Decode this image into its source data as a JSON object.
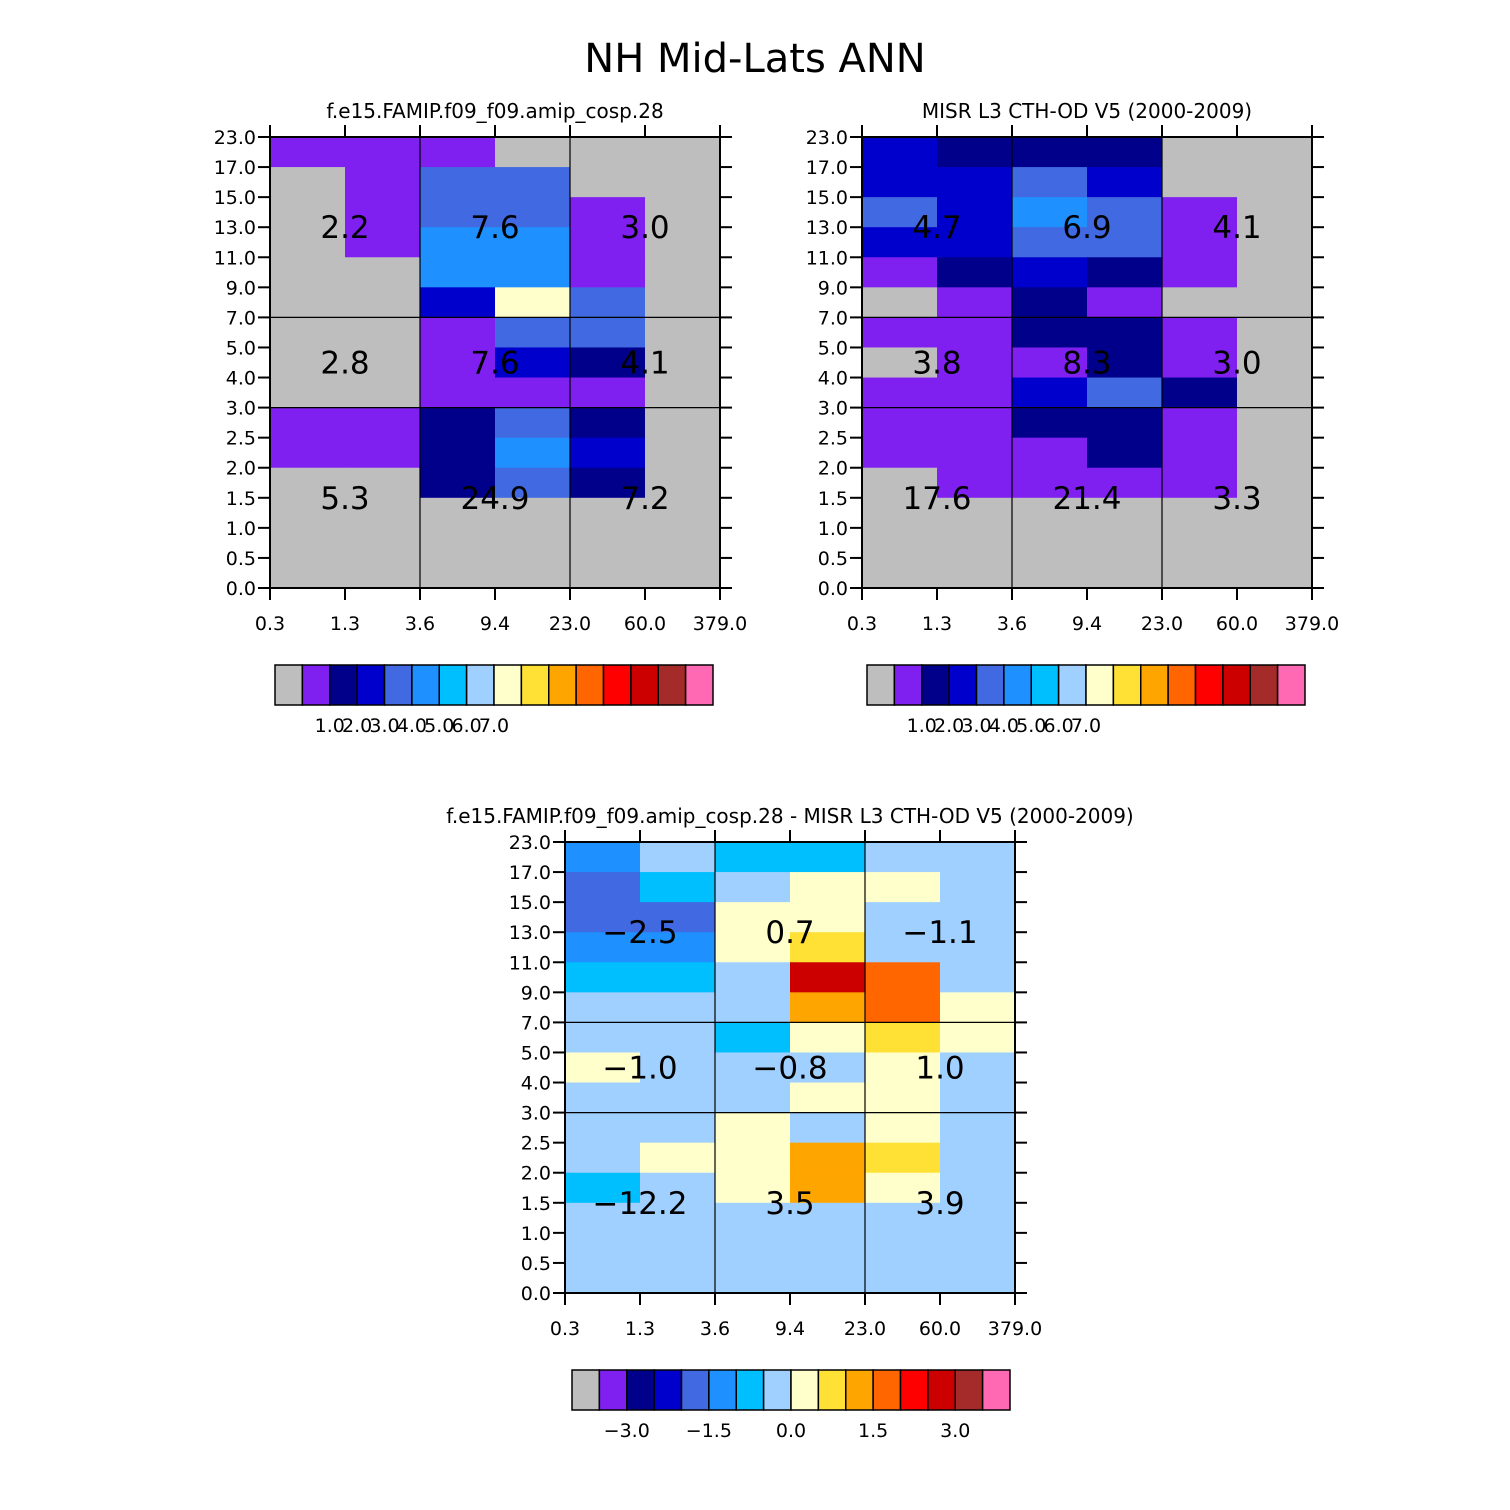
{
  "figure": {
    "title": "NH Mid-Lats ANN"
  },
  "palette": {
    "colors": [
      "#bebebe",
      "#8020f0",
      "#00008b",
      "#0000cd",
      "#4169e1",
      "#1e90ff",
      "#00bfff",
      "#a0d0ff",
      "#ffffcc",
      "#ffe135",
      "#ffa500",
      "#ff6600",
      "#ff0000",
      "#cd0000",
      "#a52a2a",
      "#ff69b4"
    ],
    "grid_line": "#000000"
  },
  "chart_data": [
    {
      "type": "heatmap",
      "title": "f.e15.FAMIP.f09_f09.amip_cosp.28",
      "x_ticks": [
        "0.3",
        "1.3",
        "3.6",
        "9.4",
        "23.0",
        "60.0",
        "379.0"
      ],
      "y_ticks": [
        "0.0",
        "0.5",
        "1.0",
        "1.5",
        "2.0",
        "2.5",
        "3.0",
        "4.0",
        "5.0",
        "7.0",
        "9.0",
        "11.0",
        "13.0",
        "15.0",
        "17.0",
        "23.0"
      ],
      "grid_x_bins": [
        2,
        4
      ],
      "grid_y_bins": [
        6,
        9
      ],
      "cell_colors": [
        [
          1,
          1,
          1,
          0,
          0,
          0
        ],
        [
          0,
          1,
          4,
          4,
          0,
          0
        ],
        [
          0,
          1,
          4,
          4,
          1,
          0
        ],
        [
          0,
          1,
          5,
          5,
          1,
          0
        ],
        [
          0,
          0,
          5,
          5,
          1,
          0
        ],
        [
          0,
          0,
          3,
          8,
          4,
          0
        ],
        [
          0,
          0,
          1,
          4,
          4,
          0
        ],
        [
          0,
          0,
          1,
          3,
          2,
          0
        ],
        [
          0,
          0,
          1,
          1,
          1,
          0
        ],
        [
          1,
          1,
          2,
          4,
          2,
          0
        ],
        [
          1,
          1,
          2,
          5,
          3,
          0
        ],
        [
          0,
          0,
          2,
          4,
          2,
          0
        ],
        [
          0,
          0,
          0,
          0,
          0,
          0
        ],
        [
          0,
          0,
          0,
          0,
          0,
          0
        ],
        [
          0,
          0,
          0,
          0,
          0,
          0
        ]
      ],
      "annotations": [
        {
          "x_bin": 1,
          "y_bin": 12,
          "label": "2.2"
        },
        {
          "x_bin": 3,
          "y_bin": 12,
          "label": "7.6"
        },
        {
          "x_bin": 5,
          "y_bin": 12,
          "label": "3.0"
        },
        {
          "x_bin": 1,
          "y_bin": 7.5,
          "label": "2.8"
        },
        {
          "x_bin": 3,
          "y_bin": 7.5,
          "label": "7.6"
        },
        {
          "x_bin": 5,
          "y_bin": 7.5,
          "label": "4.1"
        },
        {
          "x_bin": 1,
          "y_bin": 3,
          "label": "5.3"
        },
        {
          "x_bin": 3,
          "y_bin": 3,
          "label": "24.9"
        },
        {
          "x_bin": 5,
          "y_bin": 3,
          "label": "7.2"
        }
      ],
      "colorbar": {
        "labels": [
          "1.0",
          "2.0",
          "3.0",
          "4.0",
          "5.0",
          "6.0",
          "7.0"
        ],
        "first_boundary": 1
      }
    },
    {
      "type": "heatmap",
      "title": "MISR L3 CTH-OD V5 (2000-2009)",
      "x_ticks": [
        "0.3",
        "1.3",
        "3.6",
        "9.4",
        "23.0",
        "60.0",
        "379.0"
      ],
      "y_ticks": [
        "0.0",
        "0.5",
        "1.0",
        "1.5",
        "2.0",
        "2.5",
        "3.0",
        "4.0",
        "5.0",
        "7.0",
        "9.0",
        "11.0",
        "13.0",
        "15.0",
        "17.0",
        "23.0"
      ],
      "grid_x_bins": [
        2,
        4
      ],
      "grid_y_bins": [
        6,
        9
      ],
      "cell_colors": [
        [
          3,
          2,
          2,
          2,
          0,
          0
        ],
        [
          3,
          3,
          4,
          3,
          0,
          0
        ],
        [
          4,
          3,
          5,
          4,
          1,
          0
        ],
        [
          3,
          3,
          4,
          4,
          1,
          0
        ],
        [
          1,
          2,
          3,
          2,
          1,
          0
        ],
        [
          0,
          1,
          2,
          1,
          0,
          0
        ],
        [
          1,
          1,
          2,
          2,
          1,
          0
        ],
        [
          0,
          1,
          1,
          2,
          1,
          0
        ],
        [
          1,
          1,
          3,
          4,
          2,
          0
        ],
        [
          1,
          1,
          2,
          2,
          1,
          0
        ],
        [
          1,
          1,
          1,
          2,
          1,
          0
        ],
        [
          0,
          1,
          1,
          1,
          1,
          0
        ],
        [
          0,
          0,
          0,
          0,
          0,
          0
        ],
        [
          0,
          0,
          0,
          0,
          0,
          0
        ],
        [
          0,
          0,
          0,
          0,
          0,
          0
        ]
      ],
      "annotations": [
        {
          "x_bin": 1,
          "y_bin": 12,
          "label": "4.7"
        },
        {
          "x_bin": 3,
          "y_bin": 12,
          "label": "6.9"
        },
        {
          "x_bin": 5,
          "y_bin": 12,
          "label": "4.1"
        },
        {
          "x_bin": 1,
          "y_bin": 7.5,
          "label": "3.8"
        },
        {
          "x_bin": 3,
          "y_bin": 7.5,
          "label": "8.3"
        },
        {
          "x_bin": 5,
          "y_bin": 7.5,
          "label": "3.0"
        },
        {
          "x_bin": 1,
          "y_bin": 3,
          "label": "17.6"
        },
        {
          "x_bin": 3,
          "y_bin": 3,
          "label": "21.4"
        },
        {
          "x_bin": 5,
          "y_bin": 3,
          "label": "3.3"
        }
      ],
      "colorbar": {
        "labels": [
          "1.0",
          "2.0",
          "3.0",
          "4.0",
          "5.0",
          "6.0",
          "7.0"
        ],
        "first_boundary": 1
      }
    },
    {
      "type": "heatmap",
      "title": "f.e15.FAMIP.f09_f09.amip_cosp.28 - MISR L3 CTH-OD V5 (2000-2009)",
      "x_ticks": [
        "0.3",
        "1.3",
        "3.6",
        "9.4",
        "23.0",
        "60.0",
        "379.0"
      ],
      "y_ticks": [
        "0.0",
        "0.5",
        "1.0",
        "1.5",
        "2.0",
        "2.5",
        "3.0",
        "4.0",
        "5.0",
        "7.0",
        "9.0",
        "11.0",
        "13.0",
        "15.0",
        "17.0",
        "23.0"
      ],
      "grid_x_bins": [
        2,
        4
      ],
      "grid_y_bins": [
        6,
        9
      ],
      "cell_colors": [
        [
          5,
          7,
          6,
          6,
          7,
          7
        ],
        [
          4,
          6,
          7,
          8,
          8,
          7
        ],
        [
          4,
          4,
          8,
          8,
          7,
          7
        ],
        [
          5,
          5,
          8,
          9,
          7,
          7
        ],
        [
          6,
          6,
          7,
          13,
          11,
          7
        ],
        [
          7,
          7,
          7,
          10,
          11,
          8
        ],
        [
          7,
          7,
          6,
          8,
          9,
          8
        ],
        [
          8,
          7,
          7,
          7,
          8,
          7
        ],
        [
          7,
          7,
          7,
          8,
          8,
          7
        ],
        [
          7,
          7,
          8,
          7,
          8,
          7
        ],
        [
          7,
          8,
          8,
          10,
          9,
          7
        ],
        [
          6,
          7,
          8,
          10,
          8,
          7
        ],
        [
          7,
          7,
          7,
          7,
          7,
          7
        ],
        [
          7,
          7,
          7,
          7,
          7,
          7
        ],
        [
          7,
          7,
          7,
          7,
          7,
          7
        ]
      ],
      "annotations": [
        {
          "x_bin": 1,
          "y_bin": 12,
          "label": "−2.5"
        },
        {
          "x_bin": 3,
          "y_bin": 12,
          "label": "0.7"
        },
        {
          "x_bin": 5,
          "y_bin": 12,
          "label": "−1.1"
        },
        {
          "x_bin": 1,
          "y_bin": 7.5,
          "label": "−1.0"
        },
        {
          "x_bin": 3,
          "y_bin": 7.5,
          "label": "−0.8"
        },
        {
          "x_bin": 5,
          "y_bin": 7.5,
          "label": "1.0"
        },
        {
          "x_bin": 1,
          "y_bin": 3,
          "label": "−12.2"
        },
        {
          "x_bin": 3,
          "y_bin": 3,
          "label": "3.5"
        },
        {
          "x_bin": 5,
          "y_bin": 3,
          "label": "3.9"
        }
      ],
      "colorbar": {
        "labels": [
          "−3.0",
          "−1.5",
          "0.0",
          "1.5",
          "3.0"
        ],
        "first_boundary": 1,
        "label_every": 3
      }
    }
  ]
}
